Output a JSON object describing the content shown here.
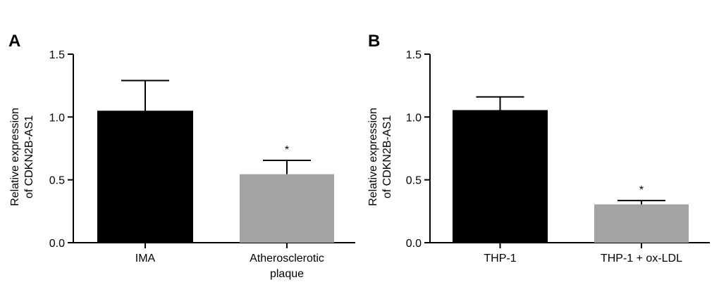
{
  "chart_data": [
    {
      "type": "bar",
      "panel_label": "A",
      "ylabel_lines": [
        "Relative expression",
        "of CDKN2B-AS1"
      ],
      "categories": [
        [
          "IMA"
        ],
        [
          "Atherosclerotic",
          "plaque"
        ]
      ],
      "values": [
        1.05,
        0.545
      ],
      "errors": [
        0.24,
        0.11
      ],
      "significance": [
        "",
        "*"
      ],
      "bar_colors": [
        "#000000",
        "#a3a3a6"
      ],
      "ylim": [
        0,
        1.5
      ],
      "yticks": [
        "0.0",
        "0.5",
        "1.0",
        "1.5"
      ],
      "ytick_values": [
        0,
        0.5,
        1.0,
        1.5
      ]
    },
    {
      "type": "bar",
      "panel_label": "B",
      "ylabel_lines": [
        "Relative expression",
        "of CDKN2B-AS1"
      ],
      "categories": [
        [
          "THP-1"
        ],
        [
          "THP-1 + ox-LDL"
        ]
      ],
      "values": [
        1.055,
        0.305
      ],
      "errors": [
        0.105,
        0.03
      ],
      "significance": [
        "",
        "*"
      ],
      "bar_colors": [
        "#000000",
        "#a3a3a6"
      ],
      "ylim": [
        0,
        1.5
      ],
      "yticks": [
        "0.0",
        "0.5",
        "1.0",
        "1.5"
      ],
      "ytick_values": [
        0,
        0.5,
        1.0,
        1.5
      ]
    }
  ]
}
